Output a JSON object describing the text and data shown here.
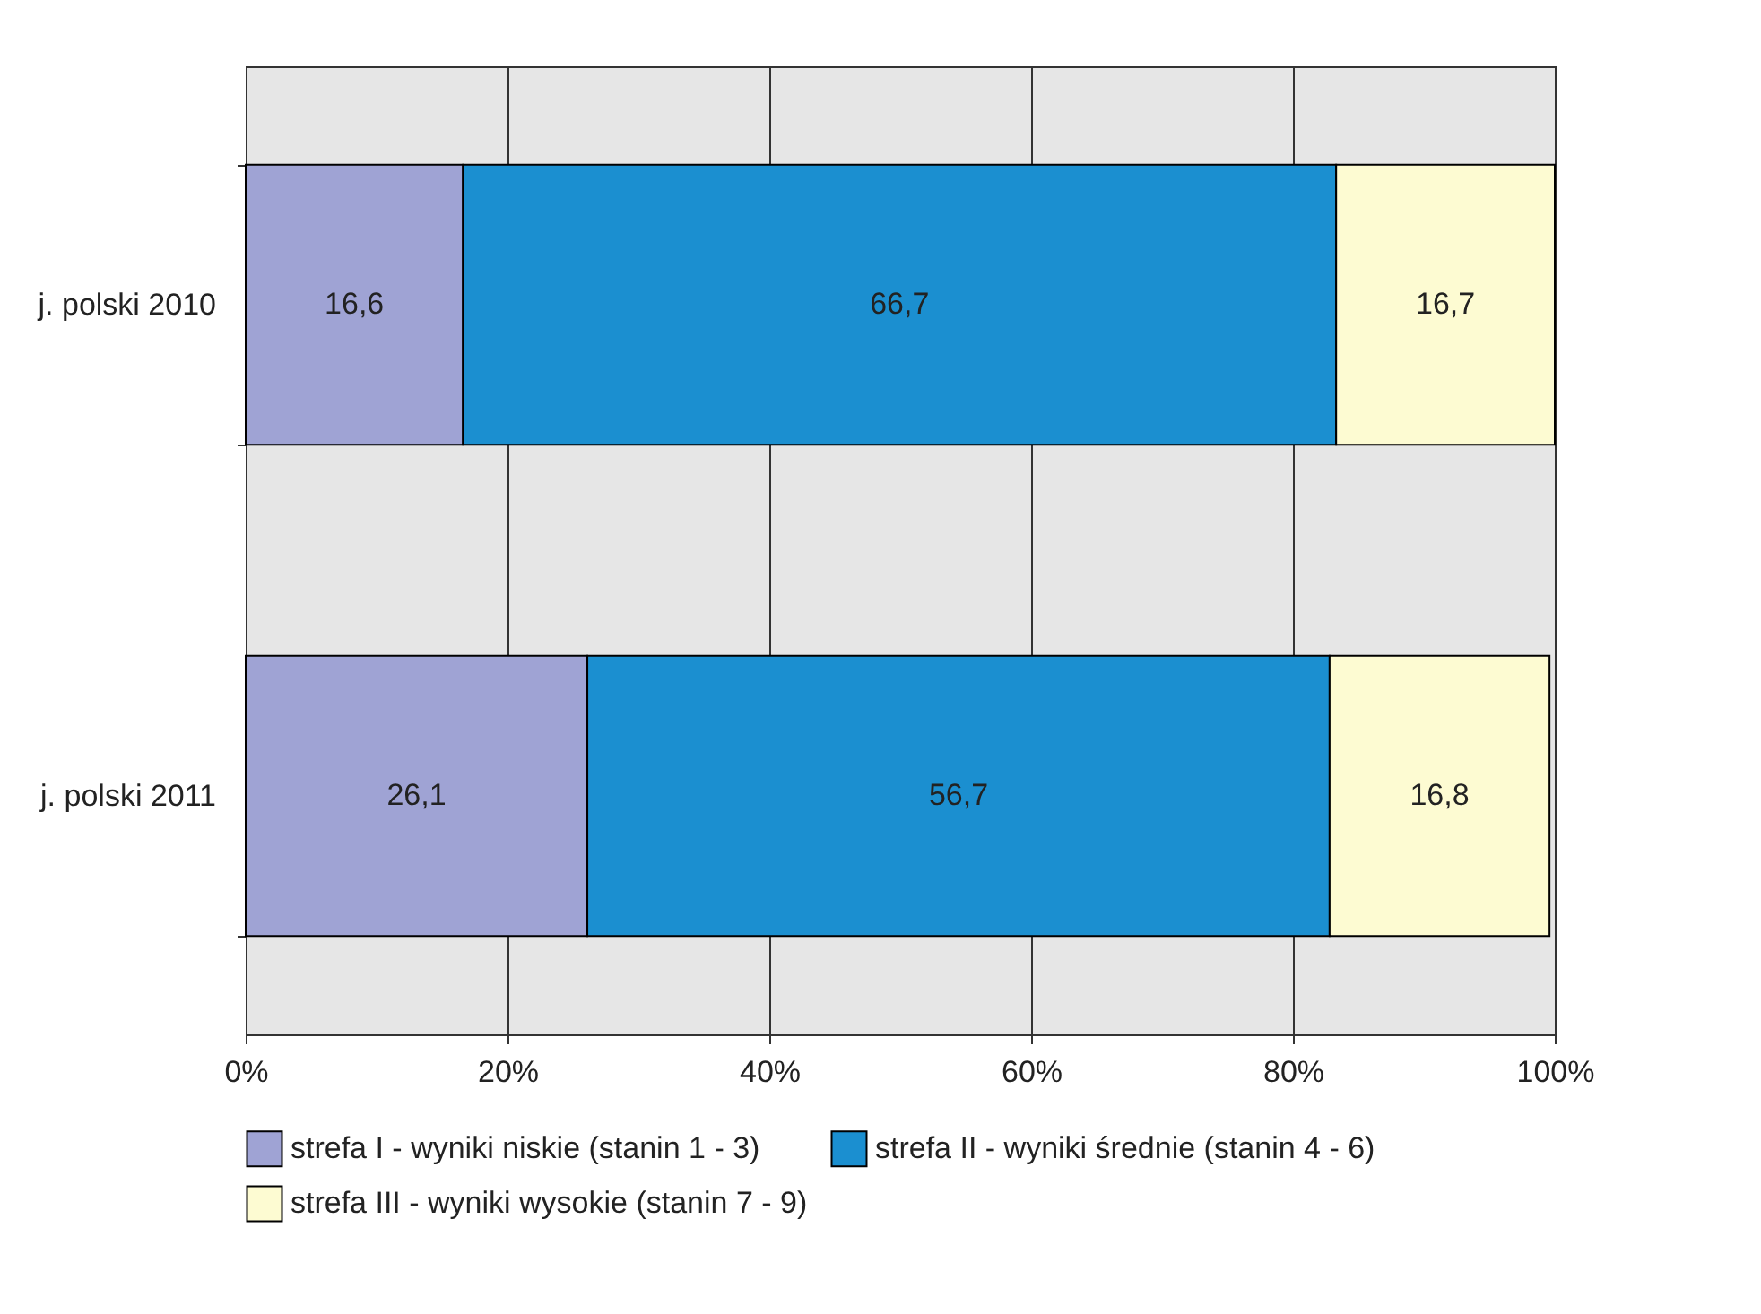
{
  "chart_data": {
    "type": "bar",
    "orientation": "horizontal",
    "stacked": true,
    "categories": [
      "j. polski 2010",
      "j. polski 2011"
    ],
    "series": [
      {
        "name": "strefa I - wyniki niskie (stanin 1 - 3)",
        "color": "#9fa3d4",
        "values": [
          16.6,
          26.1
        ],
        "value_labels": [
          "16,6",
          "26,1"
        ]
      },
      {
        "name": "strefa II - wyniki średnie (stanin 4 - 6)",
        "color": "#1b8fd0",
        "values": [
          66.7,
          56.7
        ],
        "value_labels": [
          "66,7",
          "56,7"
        ]
      },
      {
        "name": "strefa III - wyniki wysokie (stanin 7 - 9)",
        "color": "#fdfbd2",
        "values": [
          16.7,
          16.8
        ],
        "value_labels": [
          "16,7",
          "16,8"
        ]
      }
    ],
    "xlim": [
      0,
      100
    ],
    "xticks": [
      {
        "value": 0,
        "label": "0%"
      },
      {
        "value": 20,
        "label": "20%"
      },
      {
        "value": 40,
        "label": "40%"
      },
      {
        "value": 60,
        "label": "60%"
      },
      {
        "value": 80,
        "label": "80%"
      },
      {
        "value": 100,
        "label": "100%"
      }
    ],
    "grid": "x",
    "legend": "bottom"
  }
}
